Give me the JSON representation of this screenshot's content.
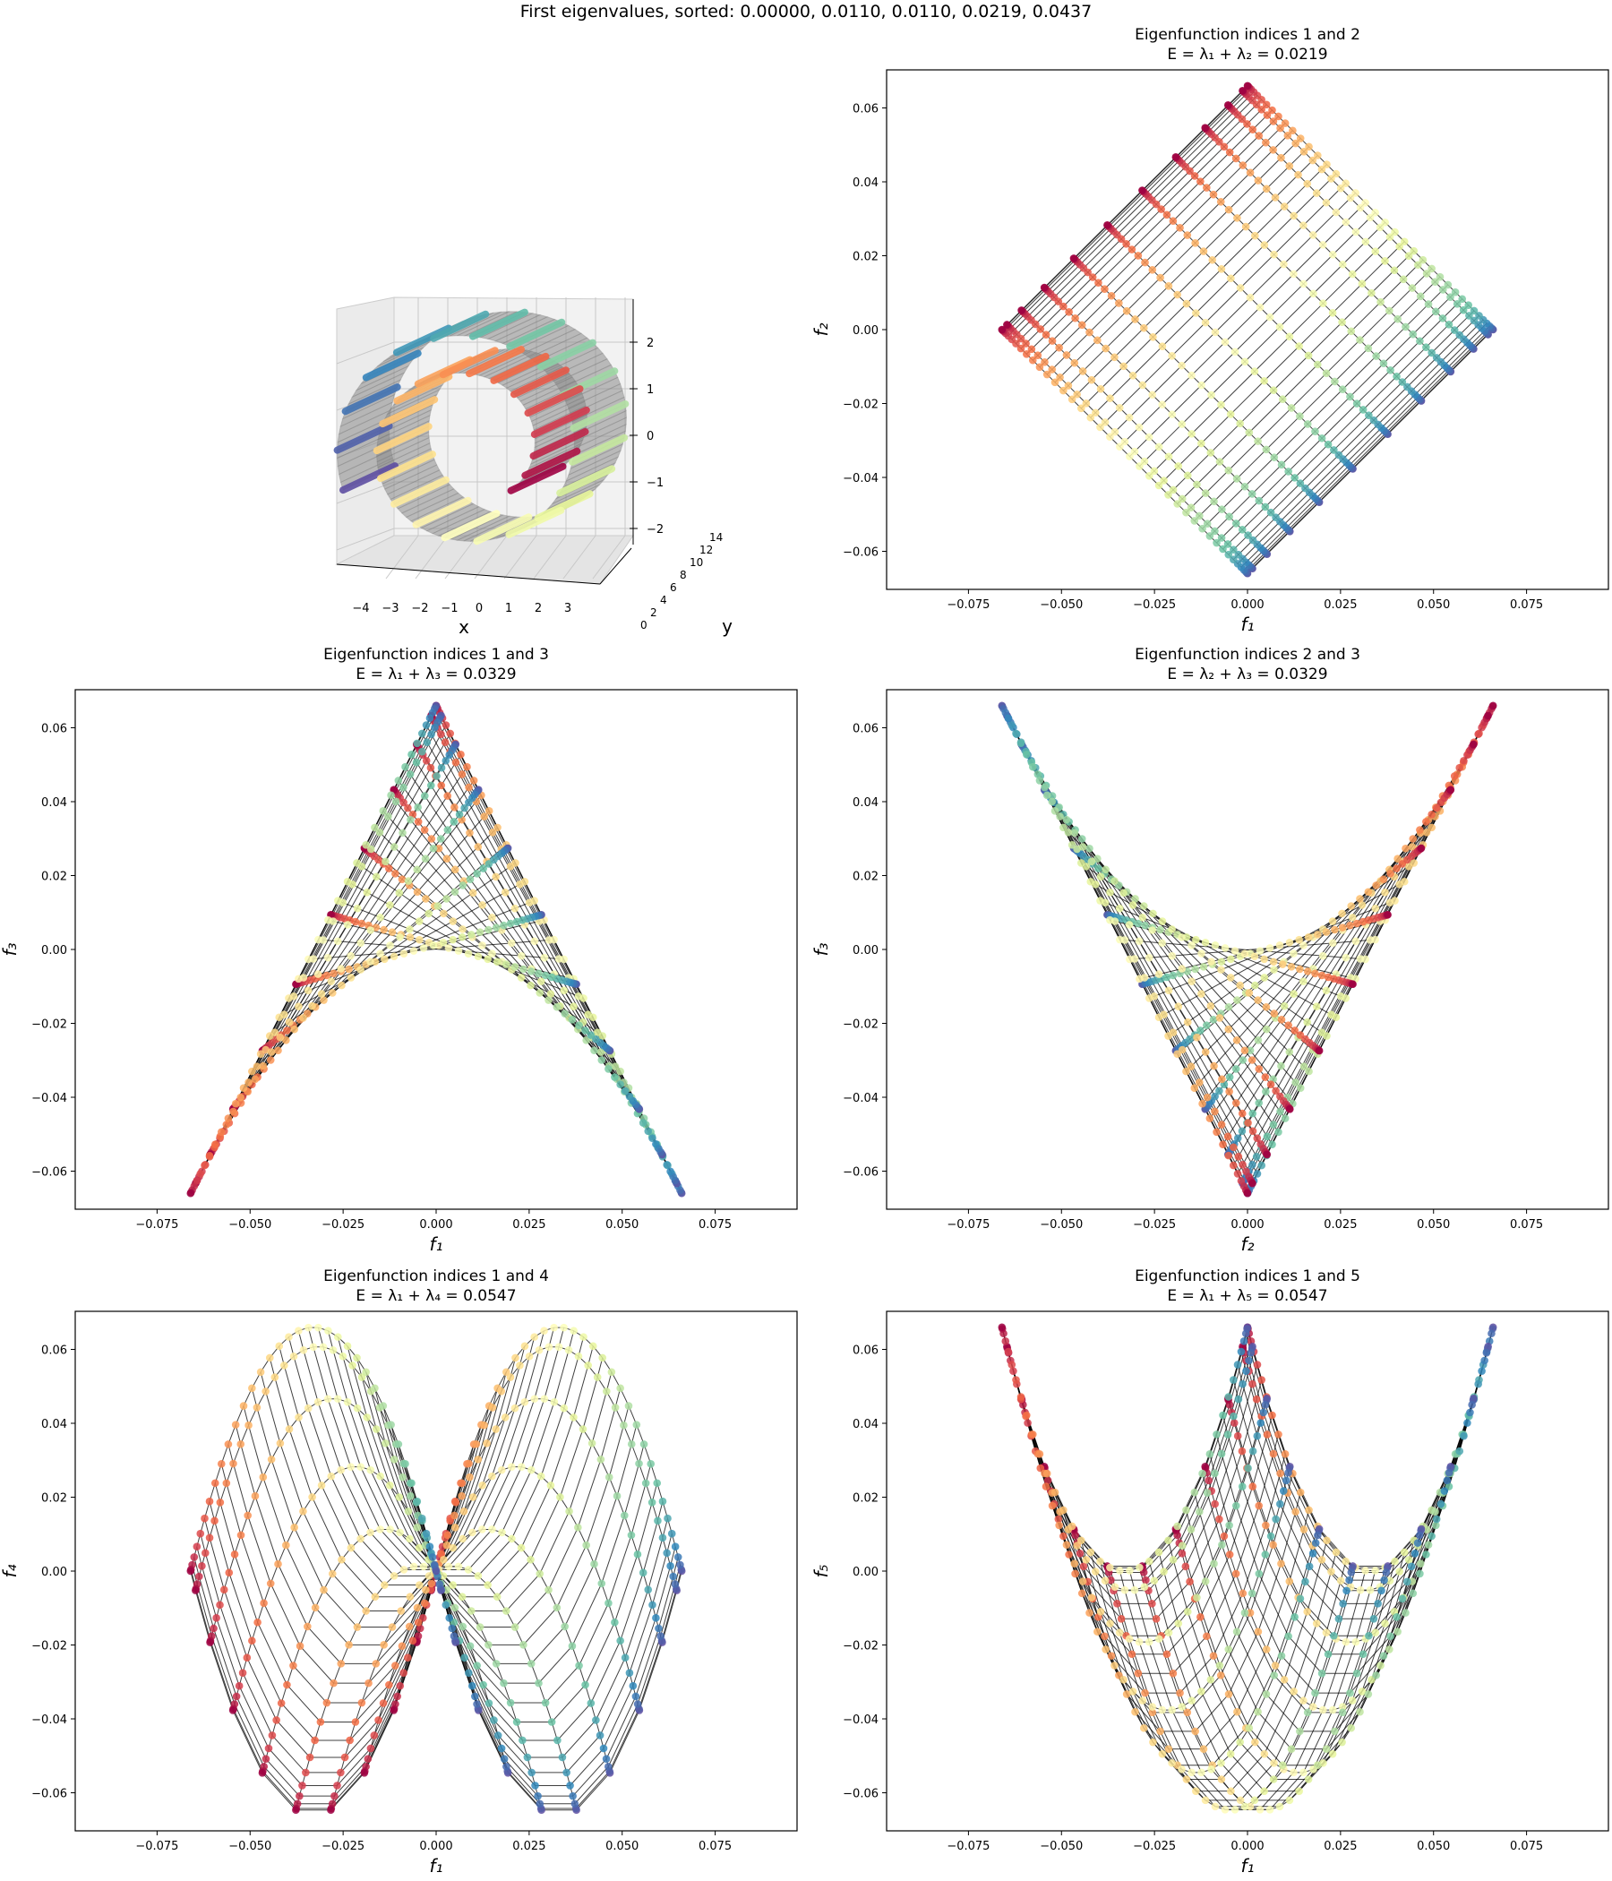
{
  "suptitle": "First eigenvalues, sorted: 0.00000, 0.0110, 0.0110, 0.0219, 0.0437",
  "colormap": [
    "#9e0142",
    "#d53e4f",
    "#f46d43",
    "#fdae61",
    "#fee08b",
    "#ffffbf",
    "#e6f598",
    "#abdda4",
    "#66c2a5",
    "#3288bd",
    "#5e4fa2"
  ],
  "surface_plot": {
    "type": "scatter3d",
    "xlabel": "x",
    "ylabel": "y",
    "xticks": [
      "−4",
      "−3",
      "−2",
      "−1",
      "0",
      "1",
      "2",
      "3"
    ],
    "yticks": [
      "0",
      "2",
      "4",
      "6",
      "8",
      "10",
      "12",
      "14"
    ],
    "zticks": [
      "2",
      "1",
      "0",
      "−1",
      "−2"
    ]
  },
  "chart_data": [
    {
      "id": "p12",
      "type": "scatter",
      "title": "Eigenfunction indices 1 and 2",
      "subtitle": "E = λ₁ + λ₂ = 0.0219",
      "xlabel": "f₁",
      "ylabel": "f₂",
      "x": "f1",
      "y": "f2",
      "xlim": [
        -0.097,
        0.097
      ],
      "ylim": [
        -0.0703,
        0.0703
      ],
      "xticks": [
        -0.075,
        -0.05,
        -0.025,
        0,
        0.025,
        0.05,
        0.075
      ],
      "xticklabels": [
        "−0.075",
        "−0.050",
        "−0.025",
        "0.000",
        "0.025",
        "0.050",
        "0.075"
      ],
      "yticks": [
        -0.06,
        -0.04,
        -0.02,
        0,
        0.02,
        0.04,
        0.06
      ],
      "yticklabels": [
        "−0.06",
        "−0.04",
        "−0.02",
        "0.00",
        "0.02",
        "0.04",
        "0.06"
      ]
    },
    {
      "id": "p13",
      "type": "scatter",
      "title": "Eigenfunction indices 1 and 3",
      "subtitle": "E = λ₁ + λ₃ = 0.0329",
      "xlabel": "f₁",
      "ylabel": "f₃",
      "x": "f1",
      "y": "f3",
      "xlim": [
        -0.097,
        0.097
      ],
      "ylim": [
        -0.0703,
        0.0703
      ],
      "xticks": [
        -0.075,
        -0.05,
        -0.025,
        0,
        0.025,
        0.05,
        0.075
      ],
      "xticklabels": [
        "−0.075",
        "−0.050",
        "−0.025",
        "0.000",
        "0.025",
        "0.050",
        "0.075"
      ],
      "yticks": [
        -0.06,
        -0.04,
        -0.02,
        0,
        0.02,
        0.04,
        0.06
      ],
      "yticklabels": [
        "−0.06",
        "−0.04",
        "−0.02",
        "0.00",
        "0.02",
        "0.04",
        "0.06"
      ]
    },
    {
      "id": "p23",
      "type": "scatter",
      "title": "Eigenfunction indices 2 and 3",
      "subtitle": "E = λ₂ + λ₃ = 0.0329",
      "xlabel": "f₂",
      "ylabel": "f₃",
      "x": "f2",
      "y": "f3",
      "xlim": [
        -0.097,
        0.097
      ],
      "ylim": [
        -0.0703,
        0.0703
      ],
      "xticks": [
        -0.075,
        -0.05,
        -0.025,
        0,
        0.025,
        0.05,
        0.075
      ],
      "xticklabels": [
        "−0.075",
        "−0.050",
        "−0.025",
        "0.000",
        "0.025",
        "0.050",
        "0.075"
      ],
      "yticks": [
        -0.06,
        -0.04,
        -0.02,
        0,
        0.02,
        0.04,
        0.06
      ],
      "yticklabels": [
        "−0.06",
        "−0.04",
        "−0.02",
        "0.00",
        "0.02",
        "0.04",
        "0.06"
      ]
    },
    {
      "id": "p14",
      "type": "scatter",
      "title": "Eigenfunction indices 1 and 4",
      "subtitle": "E = λ₁ + λ₄ = 0.0547",
      "xlabel": "f₁",
      "ylabel": "f₄",
      "x": "f1",
      "y": "f4",
      "xlim": [
        -0.097,
        0.097
      ],
      "ylim": [
        -0.0703,
        0.0703
      ],
      "xticks": [
        -0.075,
        -0.05,
        -0.025,
        0,
        0.025,
        0.05,
        0.075
      ],
      "xticklabels": [
        "−0.075",
        "−0.050",
        "−0.025",
        "0.000",
        "0.025",
        "0.050",
        "0.075"
      ],
      "yticks": [
        -0.06,
        -0.04,
        -0.02,
        0,
        0.02,
        0.04,
        0.06
      ],
      "yticklabels": [
        "−0.06",
        "−0.04",
        "−0.02",
        "0.00",
        "0.02",
        "0.04",
        "0.06"
      ]
    },
    {
      "id": "p15",
      "type": "scatter",
      "title": "Eigenfunction indices 1 and 5",
      "subtitle": "E = λ₁ + λ₅ = 0.0547",
      "xlabel": "f₁",
      "ylabel": "f₅",
      "x": "f1",
      "y": "f5",
      "xlim": [
        -0.097,
        0.097
      ],
      "ylim": [
        -0.0703,
        0.0703
      ],
      "xticks": [
        -0.075,
        -0.05,
        -0.025,
        0,
        0.025,
        0.05,
        0.075
      ],
      "xticklabels": [
        "−0.075",
        "−0.050",
        "−0.025",
        "0.000",
        "0.025",
        "0.050",
        "0.075"
      ],
      "yticks": [
        -0.06,
        -0.04,
        -0.02,
        0,
        0.02,
        0.04,
        0.06
      ],
      "yticklabels": [
        "−0.06",
        "−0.04",
        "−0.02",
        "0.00",
        "0.02",
        "0.04",
        "0.06"
      ]
    }
  ],
  "eigen_grid": {
    "amplitude": 0.066,
    "n_across": 12,
    "n_along": 40
  }
}
